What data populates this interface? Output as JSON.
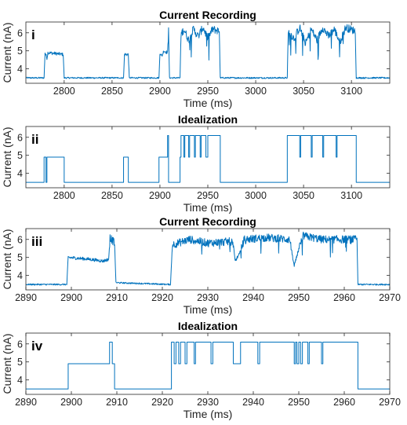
{
  "colors": {
    "trace": "#0072BD",
    "axis": "#262626"
  },
  "chart_data": [
    {
      "type": "line",
      "panel_label": "i",
      "title": "Current Recording",
      "xlabel": "Time (ms)",
      "ylabel": "Current (nA)",
      "xlim": [
        2760,
        3140
      ],
      "ylim": [
        3.2,
        6.6
      ],
      "xticks": [
        2800,
        2850,
        2900,
        2950,
        3000,
        3050,
        3100
      ],
      "yticks": [
        4,
        5,
        6
      ],
      "noisy": true,
      "segments": [
        [
          2760,
          3.5
        ],
        [
          2779,
          3.5
        ],
        [
          2780,
          4.9
        ],
        [
          2782,
          4.6
        ],
        [
          2783,
          4.9
        ],
        [
          2799,
          4.8
        ],
        [
          2800,
          3.5
        ],
        [
          2862,
          3.5
        ],
        [
          2863,
          4.8
        ],
        [
          2867,
          4.8
        ],
        [
          2868,
          3.5
        ],
        [
          2899,
          3.5
        ],
        [
          2900,
          4.9
        ],
        [
          2902,
          4.7
        ],
        [
          2904,
          5.0
        ],
        [
          2908,
          4.9
        ],
        [
          2909,
          6.1
        ],
        [
          2910,
          3.5
        ],
        [
          2921,
          3.5
        ],
        [
          2922,
          5.9
        ],
        [
          2925,
          6.2
        ],
        [
          2930,
          5.6
        ],
        [
          2935,
          6.2
        ],
        [
          2940,
          5.8
        ],
        [
          2945,
          6.3
        ],
        [
          2950,
          5.7
        ],
        [
          2955,
          6.2
        ],
        [
          2962,
          6.1
        ],
        [
          2963,
          3.5
        ],
        [
          3033,
          3.5
        ],
        [
          3034,
          6.1
        ],
        [
          3040,
          5.7
        ],
        [
          3046,
          6.3
        ],
        [
          3052,
          5.4
        ],
        [
          3058,
          6.2
        ],
        [
          3064,
          5.6
        ],
        [
          3070,
          6.3
        ],
        [
          3076,
          5.8
        ],
        [
          3082,
          6.2
        ],
        [
          3088,
          5.5
        ],
        [
          3094,
          6.3
        ],
        [
          3104,
          6.1
        ],
        [
          3105,
          3.5
        ],
        [
          3140,
          3.5
        ]
      ]
    },
    {
      "type": "line",
      "panel_label": "ii",
      "title": "Idealization",
      "xlabel": "Time (ms)",
      "ylabel": "Current (nA)",
      "xlim": [
        2760,
        3140
      ],
      "ylim": [
        3.2,
        6.6
      ],
      "xticks": [
        2800,
        2850,
        2900,
        2950,
        3000,
        3050,
        3100
      ],
      "yticks": [
        4,
        5,
        6
      ],
      "noisy": false,
      "segments": [
        [
          2760,
          3.5
        ],
        [
          2779,
          3.5
        ],
        [
          2779,
          4.9
        ],
        [
          2781,
          4.9
        ],
        [
          2781,
          3.5
        ],
        [
          2782,
          3.5
        ],
        [
          2782,
          4.9
        ],
        [
          2800,
          4.9
        ],
        [
          2800,
          3.5
        ],
        [
          2862,
          3.5
        ],
        [
          2862,
          4.9
        ],
        [
          2867,
          4.9
        ],
        [
          2867,
          3.5
        ],
        [
          2899,
          3.5
        ],
        [
          2899,
          4.9
        ],
        [
          2908,
          4.9
        ],
        [
          2908,
          6.1
        ],
        [
          2909,
          6.1
        ],
        [
          2909,
          3.5
        ],
        [
          2921,
          3.5
        ],
        [
          2921,
          4.9
        ],
        [
          2922,
          4.9
        ],
        [
          2922,
          6.1
        ],
        [
          2925,
          6.1
        ],
        [
          2925,
          4.9
        ],
        [
          2926,
          4.9
        ],
        [
          2926,
          6.1
        ],
        [
          2930,
          6.1
        ],
        [
          2930,
          4.9
        ],
        [
          2931,
          4.9
        ],
        [
          2931,
          6.1
        ],
        [
          2936,
          6.1
        ],
        [
          2936,
          4.9
        ],
        [
          2937,
          4.9
        ],
        [
          2937,
          6.1
        ],
        [
          2942,
          6.1
        ],
        [
          2942,
          4.9
        ],
        [
          2943,
          4.9
        ],
        [
          2943,
          6.1
        ],
        [
          2948,
          6.1
        ],
        [
          2948,
          4.9
        ],
        [
          2950,
          4.9
        ],
        [
          2950,
          6.1
        ],
        [
          2963,
          6.1
        ],
        [
          2963,
          3.5
        ],
        [
          3033,
          3.5
        ],
        [
          3033,
          6.1
        ],
        [
          3046,
          6.1
        ],
        [
          3046,
          4.9
        ],
        [
          3047,
          4.9
        ],
        [
          3047,
          6.1
        ],
        [
          3058,
          6.1
        ],
        [
          3058,
          4.9
        ],
        [
          3059,
          4.9
        ],
        [
          3059,
          6.1
        ],
        [
          3070,
          6.1
        ],
        [
          3070,
          4.9
        ],
        [
          3071,
          4.9
        ],
        [
          3071,
          6.1
        ],
        [
          3084,
          6.1
        ],
        [
          3084,
          4.9
        ],
        [
          3085,
          4.9
        ],
        [
          3085,
          6.1
        ],
        [
          3105,
          6.1
        ],
        [
          3105,
          3.5
        ],
        [
          3140,
          3.5
        ]
      ]
    },
    {
      "type": "line",
      "panel_label": "iii",
      "title": "Current Recording",
      "xlabel": "Time (ms)",
      "ylabel": "Current (nA)",
      "xlim": [
        2890,
        2970
      ],
      "ylim": [
        3.2,
        6.6
      ],
      "xticks": [
        2890,
        2900,
        2910,
        2920,
        2930,
        2940,
        2950,
        2960,
        2970
      ],
      "yticks": [
        4,
        5,
        6
      ],
      "noisy": true,
      "segments": [
        [
          2890,
          3.5
        ],
        [
          2899,
          3.5
        ],
        [
          2899.3,
          5.0
        ],
        [
          2904,
          4.9
        ],
        [
          2907,
          4.8
        ],
        [
          2908.2,
          4.9
        ],
        [
          2908.5,
          6.1
        ],
        [
          2909.5,
          5.8
        ],
        [
          2909.8,
          3.6
        ],
        [
          2921.8,
          3.5
        ],
        [
          2922.2,
          5.7
        ],
        [
          2926,
          6.0
        ],
        [
          2930,
          5.8
        ],
        [
          2935.5,
          5.9
        ],
        [
          2936,
          4.8
        ],
        [
          2937,
          5.2
        ],
        [
          2938,
          6.0
        ],
        [
          2943,
          6.1
        ],
        [
          2948,
          6.0
        ],
        [
          2949,
          4.5
        ],
        [
          2950,
          5.5
        ],
        [
          2951,
          6.2
        ],
        [
          2955,
          6.0
        ],
        [
          2962.8,
          6.0
        ],
        [
          2963,
          3.5
        ],
        [
          2970,
          3.5
        ]
      ]
    },
    {
      "type": "line",
      "panel_label": "iv",
      "title": "Idealization",
      "xlabel": "Time (ms)",
      "ylabel": "Current (nA)",
      "xlim": [
        2890,
        2970
      ],
      "ylim": [
        3.2,
        6.6
      ],
      "xticks": [
        2890,
        2900,
        2910,
        2920,
        2930,
        2940,
        2950,
        2960,
        2970
      ],
      "yticks": [
        4,
        5,
        6
      ],
      "noisy": false,
      "segments": [
        [
          2890,
          3.5
        ],
        [
          2899.3,
          3.5
        ],
        [
          2899.3,
          4.9
        ],
        [
          2908.4,
          4.9
        ],
        [
          2908.4,
          6.1
        ],
        [
          2909,
          6.1
        ],
        [
          2909,
          4.9
        ],
        [
          2909.5,
          4.9
        ],
        [
          2909.5,
          3.5
        ],
        [
          2922,
          3.5
        ],
        [
          2922,
          6.1
        ],
        [
          2922.6,
          6.1
        ],
        [
          2922.6,
          4.9
        ],
        [
          2923,
          4.9
        ],
        [
          2923,
          6.1
        ],
        [
          2923.6,
          6.1
        ],
        [
          2923.6,
          4.9
        ],
        [
          2924,
          4.9
        ],
        [
          2924,
          6.1
        ],
        [
          2925,
          6.1
        ],
        [
          2925,
          4.9
        ],
        [
          2925.4,
          4.9
        ],
        [
          2925.4,
          6.1
        ],
        [
          2927,
          6.1
        ],
        [
          2927,
          4.9
        ],
        [
          2927.3,
          4.9
        ],
        [
          2927.3,
          6.1
        ],
        [
          2930.7,
          6.1
        ],
        [
          2930.7,
          4.9
        ],
        [
          2931.1,
          4.9
        ],
        [
          2931.1,
          6.1
        ],
        [
          2935.6,
          6.1
        ],
        [
          2935.6,
          4.9
        ],
        [
          2937.2,
          4.9
        ],
        [
          2937.2,
          6.1
        ],
        [
          2941,
          6.1
        ],
        [
          2941,
          4.9
        ],
        [
          2941.4,
          4.9
        ],
        [
          2941.4,
          6.1
        ],
        [
          2949,
          6.1
        ],
        [
          2949,
          4.9
        ],
        [
          2949.3,
          4.9
        ],
        [
          2949.3,
          6.1
        ],
        [
          2949.6,
          6.1
        ],
        [
          2949.6,
          4.9
        ],
        [
          2950,
          4.9
        ],
        [
          2950,
          6.1
        ],
        [
          2950.4,
          6.1
        ],
        [
          2950.4,
          4.9
        ],
        [
          2950.8,
          4.9
        ],
        [
          2950.8,
          6.1
        ],
        [
          2952,
          6.1
        ],
        [
          2952,
          4.9
        ],
        [
          2952.3,
          4.9
        ],
        [
          2952.3,
          6.1
        ],
        [
          2955,
          6.1
        ],
        [
          2955,
          4.9
        ],
        [
          2955.3,
          4.9
        ],
        [
          2955.3,
          6.1
        ],
        [
          2963,
          6.1
        ],
        [
          2963,
          3.5
        ],
        [
          2970,
          3.5
        ]
      ]
    }
  ]
}
